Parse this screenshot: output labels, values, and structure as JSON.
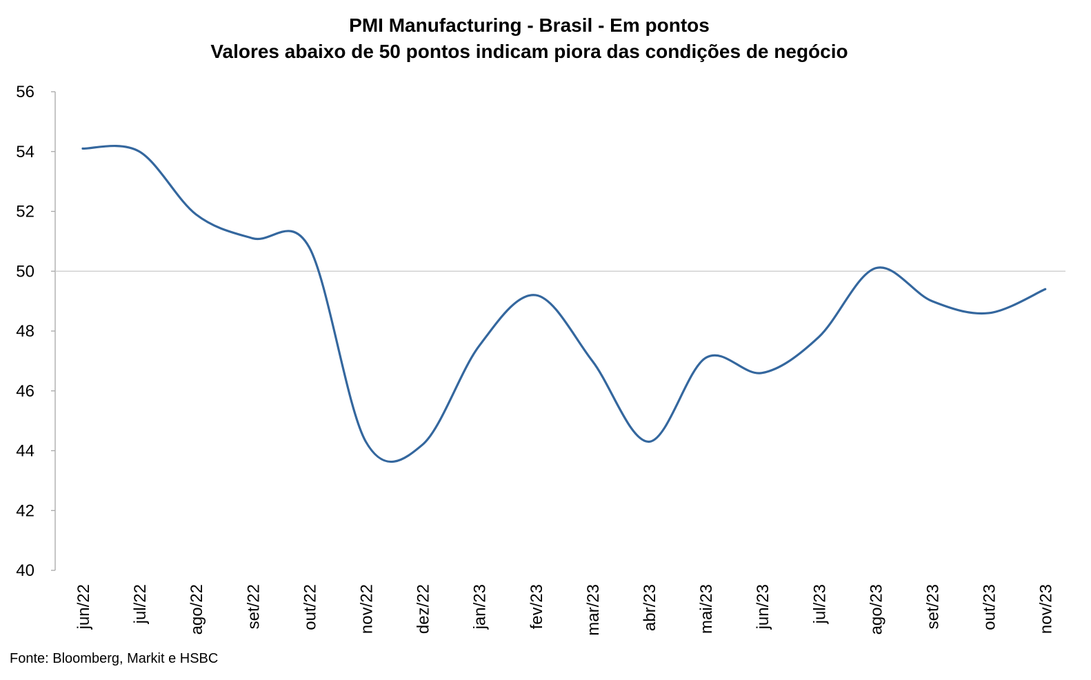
{
  "chart_data": {
    "type": "line",
    "title": "PMI Manufacturing  - Brasil - Em pontos",
    "subtitle": "Valores abaixo de 50 pontos indicam piora das condições de negócio",
    "xlabel": "",
    "ylabel": "",
    "categories": [
      "jun/22",
      "jul/22",
      "ago/22",
      "set/22",
      "out/22",
      "nov/22",
      "dez/22",
      "jan/23",
      "fev/23",
      "mar/23",
      "abr/23",
      "mai/23",
      "jun/23",
      "jul/23",
      "ago/23",
      "set/23",
      "out/23",
      "nov/23"
    ],
    "y_ticks": [
      "40",
      "42",
      "44",
      "46",
      "48",
      "50",
      "52",
      "54",
      "56"
    ],
    "ylim": [
      40,
      56
    ],
    "reference_line": 50,
    "series": [
      {
        "values": [
          54.1,
          54.0,
          51.9,
          51.1,
          50.8,
          44.3,
          44.2,
          47.5,
          49.2,
          47.0,
          44.3,
          47.1,
          46.6,
          47.8,
          50.1,
          49.0,
          48.6,
          49.4
        ],
        "color": "#34679E"
      }
    ],
    "grid": false,
    "legend": "none",
    "smooth": true
  },
  "source": "Fonte: Bloomberg, Markit e HSBC",
  "colors": {
    "line": "#34679E",
    "axis": "#A6A6A6",
    "reference": "#C8C8C8"
  }
}
